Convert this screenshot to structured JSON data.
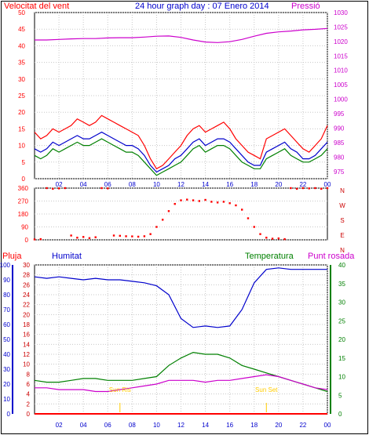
{
  "header": {
    "title": "24 hour graph day : 07 Enero 2014",
    "left_label": "Velocitat del vent",
    "right_label": "Pressió"
  },
  "lower_header": {
    "rain_label": "Pluja",
    "humidity_label": "Humitat",
    "temperature_label": "Temperatura",
    "dewpoint_label": "Punt rosada"
  },
  "colors": {
    "wind_gust": "#ff0000",
    "wind_avg": "#0000cc",
    "wind_speed": "#008000",
    "pressure": "#cc00cc",
    "direction": "#ff0000",
    "humidity": "#0000cc",
    "temperature": "#008000",
    "dewpoint": "#cc00cc",
    "rain": "#ff0000",
    "sun": "#ffcc00"
  },
  "chart_data": [
    {
      "type": "line",
      "name": "wind-pressure",
      "x_ticks": [
        "02",
        "04",
        "06",
        "08",
        "10",
        "12",
        "14",
        "16",
        "18",
        "20",
        "22",
        "00"
      ],
      "y_left": {
        "ticks": [
          0,
          5,
          10,
          15,
          20,
          25,
          30,
          35,
          40,
          45,
          50
        ],
        "range": [
          0,
          50
        ]
      },
      "y_right": {
        "ticks": [
          975,
          980,
          985,
          990,
          995,
          1000,
          1005,
          1010,
          1015,
          1020,
          1025,
          1030
        ],
        "range": [
          972.5,
          1030
        ]
      },
      "series": [
        {
          "key": "gust",
          "x": [
            0,
            0.5,
            1,
            1.5,
            2,
            2.5,
            3,
            3.5,
            4,
            4.5,
            5,
            5.5,
            6,
            6.5,
            7,
            7.5,
            8,
            8.5,
            9,
            9.5,
            10,
            10.5,
            11,
            11.5,
            12,
            12.5,
            13,
            13.5,
            14,
            14.5,
            15,
            15.5,
            16,
            16.5,
            17,
            17.5,
            18,
            18.5,
            19,
            19.5,
            20,
            20.5,
            21,
            21.5,
            22,
            22.5,
            23,
            23.5,
            24
          ],
          "values": [
            14,
            12,
            13,
            15,
            14,
            15,
            16,
            18,
            17,
            16,
            17,
            19,
            18,
            17,
            16,
            15,
            14,
            13,
            10,
            6,
            3,
            4,
            6,
            8,
            10,
            13,
            15,
            16,
            14,
            15,
            16,
            17,
            15,
            12,
            10,
            8,
            7,
            6,
            12,
            13,
            14,
            15,
            13,
            11,
            9,
            8,
            10,
            12,
            16
          ]
        },
        {
          "key": "avg",
          "x": [
            0,
            0.5,
            1,
            1.5,
            2,
            2.5,
            3,
            3.5,
            4,
            4.5,
            5,
            5.5,
            6,
            6.5,
            7,
            7.5,
            8,
            8.5,
            9,
            9.5,
            10,
            10.5,
            11,
            11.5,
            12,
            12.5,
            13,
            13.5,
            14,
            14.5,
            15,
            15.5,
            16,
            16.5,
            17,
            17.5,
            18,
            18.5,
            19,
            19.5,
            20,
            20.5,
            21,
            21.5,
            22,
            22.5,
            23,
            23.5,
            24
          ],
          "values": [
            9,
            8,
            9,
            11,
            10,
            11,
            12,
            13,
            12,
            12,
            13,
            14,
            13,
            12,
            11,
            10,
            10,
            9,
            7,
            4,
            2,
            3,
            4,
            6,
            7,
            9,
            11,
            12,
            10,
            11,
            12,
            12,
            11,
            9,
            7,
            5,
            4,
            4,
            8,
            9,
            10,
            11,
            9,
            8,
            6,
            6,
            7,
            9,
            11
          ]
        },
        {
          "key": "speed",
          "x": [
            0,
            0.5,
            1,
            1.5,
            2,
            2.5,
            3,
            3.5,
            4,
            4.5,
            5,
            5.5,
            6,
            6.5,
            7,
            7.5,
            8,
            8.5,
            9,
            9.5,
            10,
            10.5,
            11,
            11.5,
            12,
            12.5,
            13,
            13.5,
            14,
            14.5,
            15,
            15.5,
            16,
            16.5,
            17,
            17.5,
            18,
            18.5,
            19,
            19.5,
            20,
            20.5,
            21,
            21.5,
            22,
            22.5,
            23,
            23.5,
            24
          ],
          "values": [
            7,
            6,
            7,
            9,
            8,
            9,
            10,
            11,
            10,
            10,
            11,
            12,
            11,
            10,
            9,
            8,
            8,
            7,
            5,
            3,
            1,
            2,
            3,
            4,
            5,
            7,
            9,
            10,
            8,
            9,
            10,
            10,
            9,
            7,
            5,
            4,
            3,
            3,
            6,
            7,
            8,
            9,
            7,
            6,
            5,
            5,
            6,
            7,
            9
          ]
        },
        {
          "key": "pressure",
          "x": [
            0,
            1,
            2,
            3,
            4,
            5,
            6,
            7,
            8,
            9,
            10,
            11,
            12,
            13,
            14,
            15,
            16,
            17,
            18,
            19,
            20,
            21,
            22,
            23,
            24
          ],
          "values": [
            1020.5,
            1020.5,
            1020.7,
            1020.9,
            1021.0,
            1021.0,
            1021.2,
            1021.3,
            1021.3,
            1021.5,
            1021.8,
            1021.9,
            1021.4,
            1020.5,
            1019.8,
            1019.6,
            1019.9,
            1020.7,
            1021.8,
            1022.8,
            1023.3,
            1023.6,
            1024.0,
            1024.2,
            1024.5
          ]
        }
      ]
    },
    {
      "type": "scatter",
      "name": "wind-direction",
      "y_ticks": [
        0,
        90,
        180,
        270,
        360
      ],
      "y_range": [
        0,
        360
      ],
      "compass_labels": [
        "N",
        "W",
        "S",
        "E",
        "N"
      ],
      "x": [
        0,
        0.5,
        1,
        1.5,
        2,
        2.5,
        3,
        3.5,
        4,
        4.5,
        5,
        5.5,
        6,
        6.5,
        7,
        7.5,
        8,
        8.5,
        9,
        9.5,
        10,
        10.5,
        11,
        11.5,
        12,
        12.5,
        13,
        13.5,
        14,
        14.5,
        15,
        15.5,
        16,
        16.5,
        17,
        17.5,
        18,
        18.5,
        19,
        19.5,
        20,
        20.5,
        21,
        21.5,
        22,
        22.5,
        23,
        23.5,
        24
      ],
      "values": [
        3,
        5,
        360,
        355,
        358,
        360,
        30,
        15,
        20,
        12,
        18,
        360,
        358,
        30,
        28,
        25,
        24,
        22,
        25,
        40,
        90,
        140,
        200,
        250,
        275,
        280,
        275,
        270,
        278,
        265,
        260,
        265,
        255,
        240,
        210,
        150,
        90,
        40,
        15,
        8,
        10,
        5,
        360,
        355,
        360,
        358,
        360,
        355,
        360
      ]
    },
    {
      "type": "line",
      "name": "humidity-temperature",
      "x_ticks": [
        "02",
        "04",
        "06",
        "08",
        "10",
        "12",
        "14",
        "16",
        "18",
        "20",
        "22",
        "00"
      ],
      "humidity_axis": {
        "ticks": [
          0,
          10,
          20,
          30,
          40,
          50,
          60,
          70,
          80,
          90,
          100
        ],
        "range": [
          0,
          100
        ]
      },
      "left_axis": {
        "ticks": [
          0,
          2,
          4,
          6,
          8,
          10,
          12,
          14,
          16,
          18,
          20,
          22,
          24,
          26,
          28,
          30
        ],
        "range": [
          0,
          30
        ]
      },
      "temp_axis": {
        "ticks": [
          0,
          5,
          10,
          15,
          20,
          25,
          30,
          35,
          40
        ],
        "range": [
          0,
          40
        ]
      },
      "sun_labels": [
        {
          "x": 7,
          "text": "Sun Ris"
        },
        {
          "x": 19,
          "text": "Sun Set"
        }
      ],
      "series": [
        {
          "key": "humidity",
          "x": [
            0,
            1,
            2,
            3,
            4,
            5,
            6,
            7,
            8,
            9,
            10,
            11,
            12,
            13,
            14,
            15,
            16,
            17,
            18,
            19,
            20,
            21,
            22,
            23,
            24
          ],
          "values": [
            92,
            91,
            92,
            91,
            90,
            91,
            90,
            90,
            89,
            88,
            86,
            80,
            64,
            58,
            59,
            58,
            59,
            70,
            88,
            97,
            98,
            97,
            97,
            97,
            97
          ]
        },
        {
          "key": "temperature",
          "x": [
            0,
            1,
            2,
            3,
            4,
            5,
            6,
            7,
            8,
            9,
            10,
            11,
            12,
            13,
            14,
            15,
            16,
            17,
            18,
            19,
            20,
            21,
            22,
            23,
            24
          ],
          "values": [
            9,
            8.5,
            8.5,
            9,
            9.5,
            9.5,
            9,
            9,
            9,
            9.5,
            10,
            13,
            15,
            16.5,
            16,
            16,
            15,
            13,
            12,
            11,
            10,
            9,
            8,
            7,
            6
          ]
        },
        {
          "key": "dewpoint",
          "x": [
            0,
            1,
            2,
            3,
            4,
            5,
            6,
            7,
            8,
            9,
            10,
            11,
            12,
            13,
            14,
            15,
            16,
            17,
            18,
            19,
            20,
            21,
            22,
            23,
            24
          ],
          "values": [
            7,
            7,
            6.5,
            6.5,
            6.5,
            6,
            6,
            6.5,
            7,
            7.5,
            8,
            9,
            9,
            9,
            8.5,
            9,
            9,
            9.5,
            10,
            10.5,
            10,
            9,
            8,
            7,
            6.5
          ]
        },
        {
          "key": "rain",
          "x": [
            0,
            24
          ],
          "values": [
            0,
            0
          ]
        }
      ]
    }
  ]
}
